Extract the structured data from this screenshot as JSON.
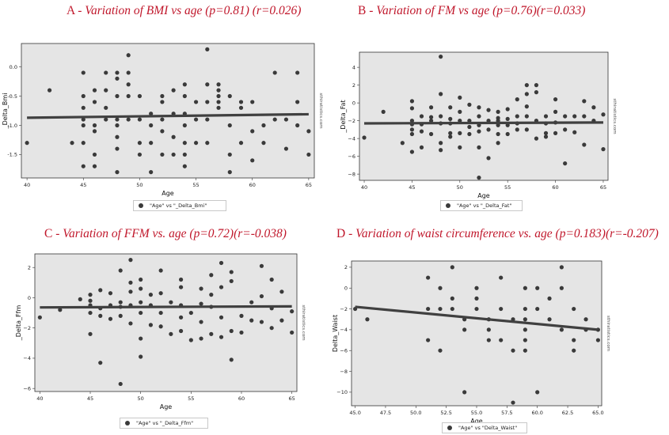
{
  "panels": [
    {
      "letter": "A",
      "title": "Variation of BMI vs age (p=0.81) (r=0.026)",
      "watermark": "sthiratistics.com",
      "legend": "\"Age\" vs \"_Delta_Bmi\""
    },
    {
      "letter": "B",
      "title": "Variation of FM vs age (p=0.76)(r=0.033)",
      "watermark": "sthiratistics.com",
      "legend": "\"Age\" vs \"_Delta_Fat\""
    },
    {
      "letter": "C",
      "title": "Variation of FFM vs. age (p=0.72)(r=-0.038)",
      "watermark": "sthiratistics.com",
      "legend": "\"Age\" vs \"_Delta_Ffm\""
    },
    {
      "letter": "D",
      "title": "Variation of waist circumference vs. age (p=0.183)(r=-0.207)",
      "watermark": "sthiratistics.com",
      "legend": "\"Age\" vs \"Delta_Waist\""
    }
  ],
  "colors": {
    "title": "#c0172b",
    "plot_background": "#e5e5e5",
    "points": "#3a3a3a",
    "regression_line": "#404040"
  },
  "chart_data": [
    {
      "type": "scatter",
      "xlabel": "Age",
      "ylabel": "_Delta_Bmi",
      "xlim": [
        39.5,
        65.5
      ],
      "ylim": [
        -1.9,
        0.4
      ],
      "xticks": [
        40,
        45,
        50,
        55,
        60,
        65
      ],
      "yticks": [
        0.0,
        -0.5,
        -1.0,
        -1.5
      ],
      "ytick_labels": [
        "0.0",
        "-0.5",
        "-1.0",
        "-1.5"
      ],
      "grid": false,
      "regression_line": {
        "x": [
          40,
          65
        ],
        "y": [
          -0.87,
          -0.81
        ]
      },
      "points": [
        [
          40,
          -1.3
        ],
        [
          42,
          -0.4
        ],
        [
          44,
          -1.3
        ],
        [
          45,
          -0.1
        ],
        [
          45,
          -0.5
        ],
        [
          45,
          -0.7
        ],
        [
          45,
          -0.9
        ],
        [
          45,
          -1.0
        ],
        [
          45,
          -1.3
        ],
        [
          45,
          -1.7
        ],
        [
          46,
          -0.4
        ],
        [
          46,
          -0.6
        ],
        [
          46,
          -1.0
        ],
        [
          46,
          -1.1
        ],
        [
          46,
          -1.5
        ],
        [
          46,
          -1.7
        ],
        [
          47,
          -0.1
        ],
        [
          47,
          -0.4
        ],
        [
          47,
          -0.7
        ],
        [
          47,
          -0.9
        ],
        [
          48,
          -0.1
        ],
        [
          48,
          -0.2
        ],
        [
          48,
          -0.5
        ],
        [
          48,
          -0.9
        ],
        [
          48,
          -1.0
        ],
        [
          48,
          -1.2
        ],
        [
          48,
          -1.4
        ],
        [
          48,
          -1.8
        ],
        [
          49,
          -0.3
        ],
        [
          49,
          -0.5
        ],
        [
          49,
          -0.9
        ],
        [
          49,
          0.2
        ],
        [
          49,
          -0.1
        ],
        [
          50,
          -0.5
        ],
        [
          50,
          -0.9
        ],
        [
          50,
          -1.3
        ],
        [
          50,
          -1.5
        ],
        [
          51,
          -0.8
        ],
        [
          51,
          -1.0
        ],
        [
          51,
          -1.3
        ],
        [
          51,
          -1.8
        ],
        [
          52,
          -0.5
        ],
        [
          52,
          -0.6
        ],
        [
          52,
          -0.9
        ],
        [
          52,
          -1.1
        ],
        [
          52,
          -1.5
        ],
        [
          53,
          -0.4
        ],
        [
          53,
          -0.8
        ],
        [
          53,
          -1.2
        ],
        [
          53,
          -1.5
        ],
        [
          54,
          -0.3
        ],
        [
          54,
          -0.5
        ],
        [
          54,
          -0.8
        ],
        [
          54,
          -1.0
        ],
        [
          54,
          -1.3
        ],
        [
          54,
          -1.5
        ],
        [
          54,
          -1.7
        ],
        [
          55,
          -0.6
        ],
        [
          55,
          -0.9
        ],
        [
          55,
          -1.3
        ],
        [
          56,
          0.3
        ],
        [
          56,
          -0.3
        ],
        [
          56,
          -0.6
        ],
        [
          56,
          -0.9
        ],
        [
          56,
          -1.3
        ],
        [
          57,
          -0.3
        ],
        [
          57,
          -0.4
        ],
        [
          57,
          -0.5
        ],
        [
          57,
          -0.6
        ],
        [
          57,
          -0.7
        ],
        [
          58,
          -0.5
        ],
        [
          58,
          -1.0
        ],
        [
          58,
          -1.5
        ],
        [
          58,
          -1.8
        ],
        [
          59,
          -0.6
        ],
        [
          59,
          -0.7
        ],
        [
          59,
          -1.3
        ],
        [
          60,
          -0.6
        ],
        [
          60,
          -1.1
        ],
        [
          60,
          -1.6
        ],
        [
          61,
          -1.0
        ],
        [
          61,
          -1.3
        ],
        [
          62,
          -0.1
        ],
        [
          62,
          -0.9
        ],
        [
          63,
          -0.9
        ],
        [
          63,
          -1.4
        ],
        [
          64,
          -0.1
        ],
        [
          64,
          -0.6
        ],
        [
          64,
          -1.0
        ],
        [
          65,
          -1.1
        ],
        [
          65,
          -1.5
        ]
      ]
    },
    {
      "type": "scatter",
      "xlabel": "Age",
      "ylabel": "_Delta_Fat",
      "xlim": [
        39.5,
        65.5
      ],
      "ylim": [
        -8.7,
        5.7
      ],
      "xticks": [
        40,
        45,
        50,
        55,
        60,
        65
      ],
      "yticks": [
        4,
        2,
        0,
        -2,
        -4,
        -6,
        -8
      ],
      "ytick_labels": [
        "4",
        "2",
        "0",
        "−2",
        "−4",
        "−6",
        "−8"
      ],
      "grid": false,
      "regression_line": {
        "x": [
          40,
          65
        ],
        "y": [
          -2.3,
          -2.2
        ]
      },
      "points": [
        [
          40,
          -3.9
        ],
        [
          42,
          -1.0
        ],
        [
          44,
          -4.5
        ],
        [
          45,
          0.2
        ],
        [
          45,
          -0.6
        ],
        [
          45,
          -2.0
        ],
        [
          45,
          -2.4
        ],
        [
          45,
          -3.0
        ],
        [
          45,
          -3.5
        ],
        [
          45,
          -5.5
        ],
        [
          46,
          -1.5
        ],
        [
          46,
          -2.4
        ],
        [
          46,
          -3.2
        ],
        [
          46,
          -5.0
        ],
        [
          47,
          -0.5
        ],
        [
          47,
          -1.6
        ],
        [
          47,
          -2.0
        ],
        [
          47,
          -3.5
        ],
        [
          48,
          5.2
        ],
        [
          48,
          1.0
        ],
        [
          48,
          -1.5
        ],
        [
          48,
          -2.3
        ],
        [
          48,
          -4.5
        ],
        [
          48,
          -5.3
        ],
        [
          49,
          -0.5
        ],
        [
          49,
          -1.8
        ],
        [
          49,
          -2.3
        ],
        [
          49,
          -3.4
        ],
        [
          49,
          -3.8
        ],
        [
          50,
          0.6
        ],
        [
          50,
          -1.0
        ],
        [
          50,
          -2.0
        ],
        [
          50,
          -3.4
        ],
        [
          50,
          -5.0
        ],
        [
          51,
          -0.2
        ],
        [
          51,
          -2.0
        ],
        [
          51,
          -2.7
        ],
        [
          51,
          -3.5
        ],
        [
          52,
          -0.5
        ],
        [
          52,
          -1.5
        ],
        [
          52,
          -2.5
        ],
        [
          52,
          -3.2
        ],
        [
          52,
          -5.0
        ],
        [
          52,
          -8.4
        ],
        [
          53,
          -0.8
        ],
        [
          53,
          -2.0
        ],
        [
          53,
          -3.0
        ],
        [
          53,
          -6.2
        ],
        [
          54,
          -1.0
        ],
        [
          54,
          -1.7
        ],
        [
          54,
          -2.0
        ],
        [
          54,
          -2.5
        ],
        [
          54,
          -3.5
        ],
        [
          54,
          -4.5
        ],
        [
          55,
          -0.7
        ],
        [
          55,
          -1.8
        ],
        [
          55,
          -2.5
        ],
        [
          55,
          -3.5
        ],
        [
          56,
          0.4
        ],
        [
          56,
          -1.5
        ],
        [
          56,
          -2.3
        ],
        [
          56,
          -3.0
        ],
        [
          57,
          2.0
        ],
        [
          57,
          1.0
        ],
        [
          57,
          -0.4
        ],
        [
          57,
          -1.5
        ],
        [
          57,
          -3.0
        ],
        [
          58,
          2.0
        ],
        [
          58,
          1.2
        ],
        [
          58,
          -2.0
        ],
        [
          58,
          -4.0
        ],
        [
          59,
          -1.5
        ],
        [
          59,
          -2.3
        ],
        [
          59,
          -3.4
        ],
        [
          59,
          -3.8
        ],
        [
          60,
          0.4
        ],
        [
          60,
          -1.0
        ],
        [
          60,
          -2.2
        ],
        [
          60,
          -3.4
        ],
        [
          61,
          -6.8
        ],
        [
          61,
          -1.5
        ],
        [
          61,
          -3.0
        ],
        [
          62,
          -1.5
        ],
        [
          62,
          -3.3
        ],
        [
          63,
          0.2
        ],
        [
          63,
          -1.5
        ],
        [
          63,
          -4.7
        ],
        [
          64,
          -0.5
        ],
        [
          64,
          -2.0
        ],
        [
          65,
          -5.2
        ],
        [
          65,
          -1.3
        ]
      ]
    },
    {
      "type": "scatter",
      "xlabel": "Age",
      "ylabel": "_Delta_Ffm",
      "xlim": [
        39.5,
        65.5
      ],
      "ylim": [
        -6.2,
        2.9
      ],
      "xticks": [
        40,
        45,
        50,
        55,
        60,
        65
      ],
      "yticks": [
        2,
        0,
        -2,
        -4,
        -6
      ],
      "ytick_labels": [
        "2",
        "0",
        "−2",
        "−4",
        "−6"
      ],
      "grid": false,
      "regression_line": {
        "x": [
          40,
          65
        ],
        "y": [
          -0.64,
          -0.57
        ]
      },
      "points": [
        [
          40,
          -1.3
        ],
        [
          42,
          -0.8
        ],
        [
          44,
          -0.1
        ],
        [
          45,
          0.2
        ],
        [
          45,
          -0.2
        ],
        [
          45,
          -0.5
        ],
        [
          45,
          -1.0
        ],
        [
          45,
          -2.4
        ],
        [
          46,
          0.5
        ],
        [
          46,
          -0.7
        ],
        [
          46,
          -1.2
        ],
        [
          46,
          -4.3
        ],
        [
          47,
          0.3
        ],
        [
          47,
          -0.5
        ],
        [
          47,
          -1.4
        ],
        [
          48,
          1.8
        ],
        [
          48,
          -0.3
        ],
        [
          48,
          -0.6
        ],
        [
          48,
          -1.2
        ],
        [
          48,
          -5.7
        ],
        [
          49,
          2.5
        ],
        [
          49,
          1.0
        ],
        [
          49,
          0.4
        ],
        [
          49,
          -0.5
        ],
        [
          49,
          -1.7
        ],
        [
          50,
          1.2
        ],
        [
          50,
          0.6
        ],
        [
          50,
          -0.3
        ],
        [
          50,
          -1.0
        ],
        [
          50,
          -2.7
        ],
        [
          50,
          -3.9
        ],
        [
          51,
          0.2
        ],
        [
          51,
          -0.5
        ],
        [
          51,
          -1.8
        ],
        [
          52,
          1.8
        ],
        [
          52,
          0.3
        ],
        [
          52,
          -1.0
        ],
        [
          52,
          -1.9
        ],
        [
          53,
          -0.3
        ],
        [
          53,
          -2.4
        ],
        [
          54,
          1.2
        ],
        [
          54,
          0.7
        ],
        [
          54,
          -0.5
        ],
        [
          54,
          -1.3
        ],
        [
          54,
          -2.2
        ],
        [
          55,
          -1.0
        ],
        [
          55,
          -2.8
        ],
        [
          56,
          0.6
        ],
        [
          56,
          -0.4
        ],
        [
          56,
          -1.6
        ],
        [
          56,
          -2.7
        ],
        [
          57,
          1.5
        ],
        [
          57,
          0.2
        ],
        [
          57,
          -0.6
        ],
        [
          57,
          -2.4
        ],
        [
          58,
          2.3
        ],
        [
          58,
          0.7
        ],
        [
          58,
          -1.3
        ],
        [
          58,
          -2.6
        ],
        [
          59,
          1.7
        ],
        [
          59,
          1.1
        ],
        [
          59,
          -2.2
        ],
        [
          59,
          -4.1
        ],
        [
          60,
          -1.2
        ],
        [
          60,
          -2.3
        ],
        [
          61,
          -0.3
        ],
        [
          61,
          -1.5
        ],
        [
          62,
          2.1
        ],
        [
          62,
          0.1
        ],
        [
          62,
          -1.6
        ],
        [
          63,
          1.2
        ],
        [
          63,
          -0.7
        ],
        [
          63,
          -2.0
        ],
        [
          64,
          0.4
        ],
        [
          64,
          -1.5
        ],
        [
          65,
          -0.9
        ],
        [
          65,
          -2.3
        ]
      ]
    },
    {
      "type": "scatter",
      "xlabel": "Age",
      "ylabel": "Delta_Waist",
      "xlim": [
        44.7,
        65.3
      ],
      "ylim": [
        -11.3,
        2.6
      ],
      "xticks": [
        45.0,
        47.5,
        50.0,
        52.5,
        55.0,
        57.5,
        60.0,
        62.5,
        65.0
      ],
      "xtick_labels": [
        "45.0",
        "47.5",
        "50.0",
        "52.5",
        "55.0",
        "57.5",
        "60.0",
        "62.5",
        "65.0"
      ],
      "yticks": [
        2,
        0,
        -2,
        -4,
        -6,
        -8,
        -10
      ],
      "ytick_labels": [
        "2",
        "0",
        "−2",
        "−4",
        "−6",
        "−8",
        "−10"
      ],
      "grid": false,
      "regression_line": {
        "x": [
          45,
          65
        ],
        "y": [
          -1.8,
          -4.0
        ]
      },
      "points": [
        [
          45,
          -2
        ],
        [
          46,
          -3
        ],
        [
          51,
          1
        ],
        [
          51,
          -2
        ],
        [
          51,
          -5
        ],
        [
          52,
          0
        ],
        [
          52,
          -2
        ],
        [
          52,
          -6
        ],
        [
          53,
          2
        ],
        [
          53,
          -1
        ],
        [
          53,
          -2
        ],
        [
          54,
          -3
        ],
        [
          54,
          -4
        ],
        [
          54,
          -10
        ],
        [
          55,
          -1
        ],
        [
          55,
          0
        ],
        [
          55,
          -2
        ],
        [
          56,
          -3
        ],
        [
          56,
          -4
        ],
        [
          56,
          -5
        ],
        [
          57,
          1
        ],
        [
          57,
          -2
        ],
        [
          57,
          -5
        ],
        [
          58,
          -3
        ],
        [
          58,
          -6
        ],
        [
          58,
          -11
        ],
        [
          59,
          0
        ],
        [
          59,
          -2
        ],
        [
          59,
          -3
        ],
        [
          59,
          -4
        ],
        [
          59,
          -5
        ],
        [
          59,
          -6
        ],
        [
          60,
          0
        ],
        [
          60,
          -2
        ],
        [
          60,
          -10
        ],
        [
          61,
          -1
        ],
        [
          61,
          -3
        ],
        [
          62,
          2
        ],
        [
          62,
          0
        ],
        [
          62,
          -4
        ],
        [
          63,
          -2
        ],
        [
          63,
          -5
        ],
        [
          63,
          -6
        ],
        [
          64,
          -3
        ],
        [
          64,
          -4
        ],
        [
          65,
          -4
        ],
        [
          65,
          -5
        ]
      ]
    }
  ]
}
